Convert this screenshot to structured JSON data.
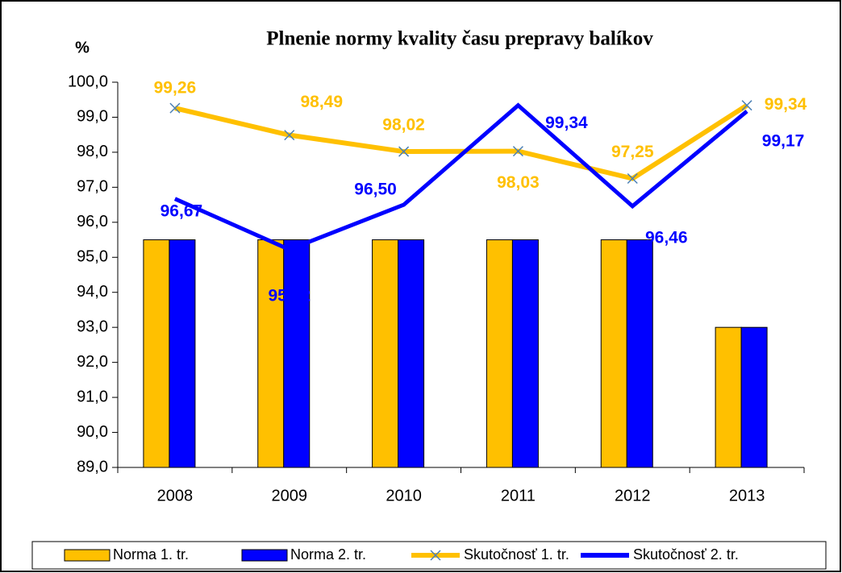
{
  "chart_data": {
    "type": "bar-line",
    "title": "Plnenie normy kvality času prepravy balíkov",
    "y_label": "%",
    "categories": [
      "2008",
      "2009",
      "2010",
      "2011",
      "2012",
      "2013"
    ],
    "series": [
      {
        "name": "Norma 1. tr.",
        "type": "bar",
        "color": "#ffc000",
        "values": [
          95.5,
          95.5,
          95.5,
          95.5,
          95.5,
          93.0
        ]
      },
      {
        "name": "Norma 2. tr.",
        "type": "bar",
        "color": "#0000ff",
        "values": [
          95.5,
          95.5,
          95.5,
          95.5,
          95.5,
          93.0
        ]
      },
      {
        "name": "Skutočnosť 1. tr.",
        "type": "line",
        "color": "#ffc000",
        "marker": "x",
        "values": [
          99.26,
          98.49,
          98.02,
          98.03,
          97.25,
          99.34
        ],
        "value_labels": [
          "99,26",
          "98,49",
          "98,02",
          "98,03",
          "97,25",
          "99,34"
        ]
      },
      {
        "name": "Skutočnosť 2. tr.",
        "type": "line",
        "color": "#0000ff",
        "values": [
          96.67,
          95.22,
          96.5,
          99.34,
          96.46,
          99.17
        ],
        "value_labels": [
          "96,67",
          "95,22",
          "96,50",
          "99,34",
          "96,46",
          "99,17"
        ]
      }
    ],
    "ylim": [
      89.0,
      100.0
    ],
    "yticks": [
      {
        "value": 89.0,
        "label": "89,0"
      },
      {
        "value": 90.0,
        "label": "90,0"
      },
      {
        "value": 91.0,
        "label": "91,0"
      },
      {
        "value": 92.0,
        "label": "92,0"
      },
      {
        "value": 93.0,
        "label": "93,0"
      },
      {
        "value": 94.0,
        "label": "94,0"
      },
      {
        "value": 95.0,
        "label": "95,0"
      },
      {
        "value": 96.0,
        "label": "96,0"
      },
      {
        "value": 97.0,
        "label": "97,0"
      },
      {
        "value": 98.0,
        "label": "98,0"
      },
      {
        "value": 99.0,
        "label": "99,0"
      },
      {
        "value": 100.0,
        "label": "100,0"
      }
    ],
    "grid": false,
    "legend": "bottom"
  }
}
